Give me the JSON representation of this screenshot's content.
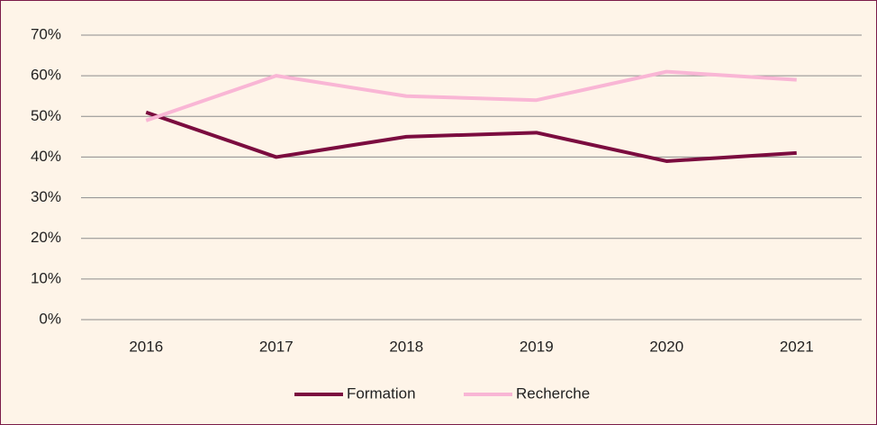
{
  "chart_data": {
    "type": "line",
    "categories": [
      "2016",
      "2017",
      "2018",
      "2019",
      "2020",
      "2021"
    ],
    "series": [
      {
        "name": "Formation",
        "color": "#7b0c3f",
        "values": [
          51,
          40,
          45,
          46,
          39,
          41
        ]
      },
      {
        "name": "Recherche",
        "color": "#f9b6d5",
        "values": [
          49,
          60,
          55,
          54,
          61,
          59
        ]
      }
    ],
    "ylim": [
      0,
      70
    ],
    "yticks": [
      {
        "value": 0,
        "label": "0%"
      },
      {
        "value": 10,
        "label": "10%"
      },
      {
        "value": 20,
        "label": "20%"
      },
      {
        "value": 30,
        "label": "30%"
      },
      {
        "value": 40,
        "label": "40%"
      },
      {
        "value": 50,
        "label": "50%"
      },
      {
        "value": 60,
        "label": "60%"
      },
      {
        "value": 70,
        "label": "70%"
      }
    ],
    "grid": true,
    "legend": "bottom"
  }
}
